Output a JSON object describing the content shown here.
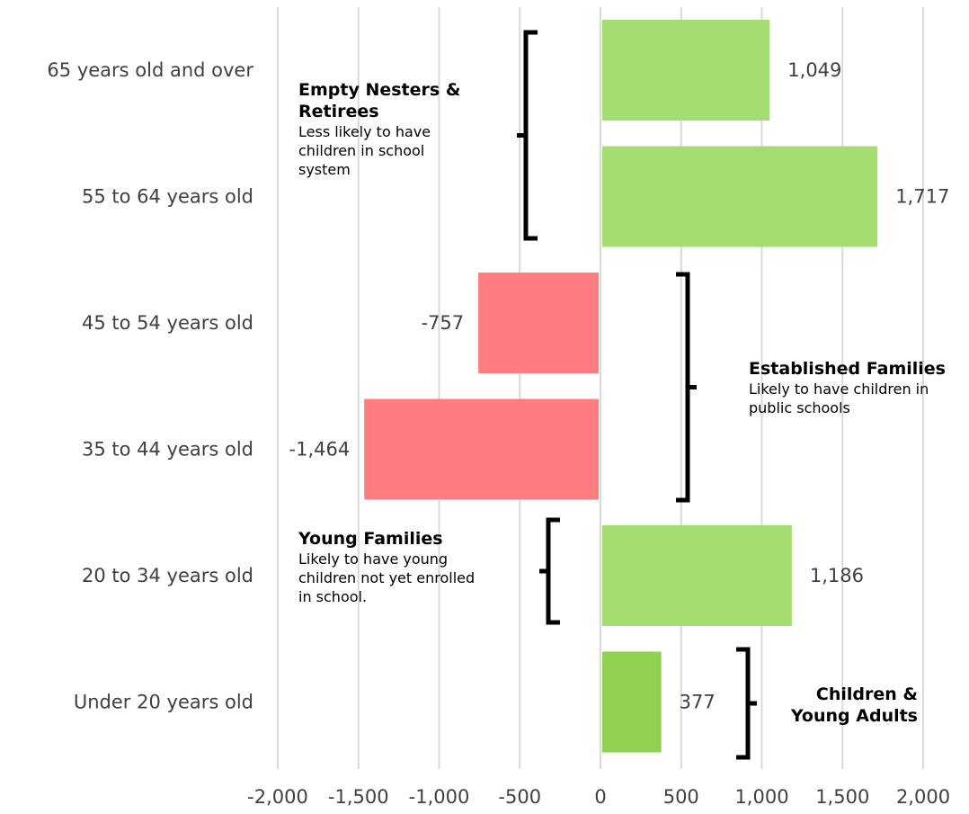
{
  "chart_data": {
    "type": "bar",
    "orientation": "horizontal",
    "categories": [
      "65 years old and over",
      "55 to 64 years old",
      "45 to 54 years old",
      "35 to 44 years old",
      "20 to 34 years old",
      "Under 20 years old"
    ],
    "values": [
      1049,
      1717,
      -757,
      -1464,
      1186,
      377
    ],
    "value_labels": [
      "1,049",
      "1,717",
      "-757",
      "-1,464",
      "1,186",
      "377"
    ],
    "xlim": [
      -2000,
      2000
    ],
    "x_ticks": [
      -2000,
      -1500,
      -1000,
      -500,
      0,
      500,
      1000,
      1500,
      2000
    ],
    "x_tick_labels": [
      "-2,000",
      "-1,500",
      "-1,000",
      "-500",
      "0",
      "500",
      "1,000",
      "1,500",
      "2,000"
    ],
    "grid": "vertical",
    "colors": {
      "positive": "#a4de72",
      "negative": "#ff7c80",
      "highlight": "#92d050",
      "grid": "#d9d9d9",
      "text": "#404040"
    },
    "bar_colors": [
      "#a4de72",
      "#a4de72",
      "#ff7c80",
      "#ff7c80",
      "#a4de72",
      "#92d050"
    ],
    "annotations": [
      {
        "title_lines": [
          "Empty Nesters &",
          "Retirees"
        ],
        "text_lines": [
          "Less likely to have",
          "children in school",
          "system"
        ],
        "spans": [
          "65 years old and over",
          "55 to 64 years old"
        ]
      },
      {
        "title_lines": [
          "Established Families"
        ],
        "text_lines": [
          "Likely to have children in",
          "public schools"
        ],
        "spans": [
          "45 to 54 years old",
          "35 to 44 years old"
        ]
      },
      {
        "title_lines": [
          "Young Families"
        ],
        "text_lines": [
          "Likely to have young",
          "children not yet enrolled",
          "in school."
        ],
        "spans": [
          "20 to 34 years old"
        ]
      },
      {
        "title_lines": [
          "Children &",
          "Young Adults"
        ],
        "text_lines": [],
        "spans": [
          "Under 20 years old"
        ]
      }
    ]
  }
}
